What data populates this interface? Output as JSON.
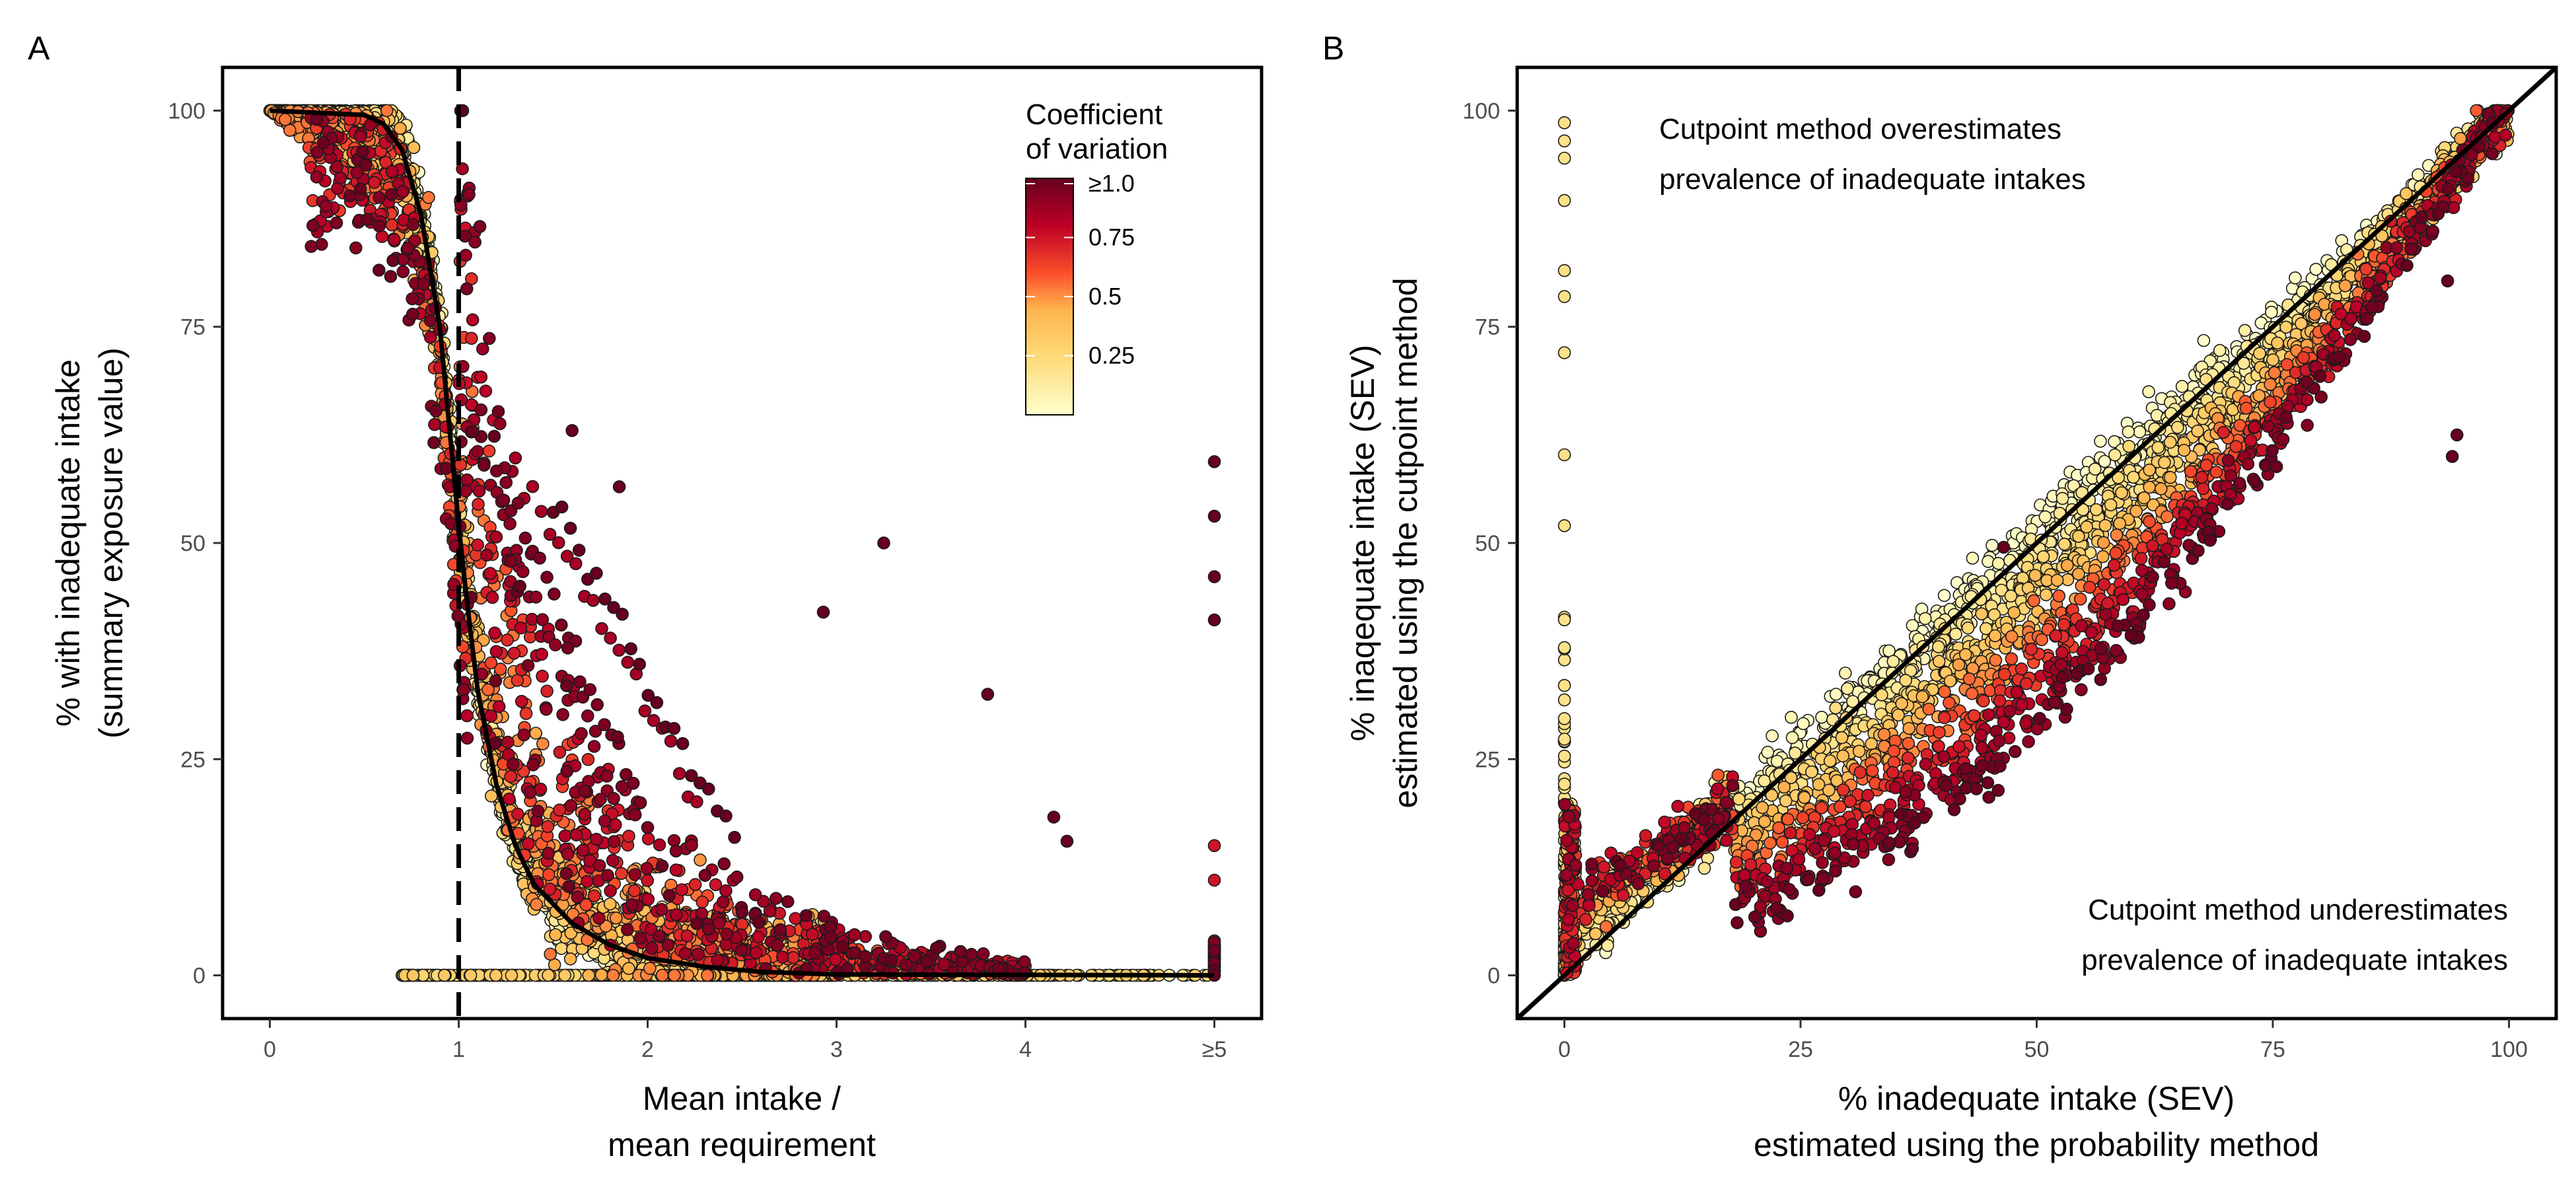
{
  "panels": {
    "a_label": "A",
    "b_label": "B"
  },
  "colors": {
    "cv_low": "#ffffcc",
    "cv_mid_low": "#feb24c",
    "cv_mid": "#fc4e2a",
    "cv_high": "#bd0026",
    "cv_max": "#67001f",
    "curve": "#000000"
  },
  "chart_data": [
    {
      "type": "scatter",
      "panel": "A",
      "title": "",
      "xlabel_line1": "Mean intake /",
      "xlabel_line2": "mean requirement",
      "ylabel_line1": "% with inadequate intake",
      "ylabel_line2": "(summary exposure value)",
      "xlim": [
        -0.25,
        5.25
      ],
      "ylim": [
        -5,
        105
      ],
      "x_ticks": [
        0,
        1,
        2,
        3,
        4,
        5
      ],
      "x_tick_labels": [
        "0",
        "1",
        "2",
        "3",
        "4",
        "≥5"
      ],
      "y_ticks": [
        0,
        25,
        50,
        75,
        100
      ],
      "y_tick_labels": [
        "0",
        "25",
        "50",
        "75",
        "100"
      ],
      "reference_line_x": 1,
      "reference_line_style": "dashed",
      "color_variable": "Coefficient of variation",
      "legend": {
        "title_line1": "Coefficient",
        "title_line2": "of variation",
        "position": "top-right",
        "ticks": [
          0.25,
          0.5,
          0.75,
          1.0
        ],
        "tick_labels": [
          "0.25",
          "0.5",
          "0.75",
          "≥1.0"
        ]
      },
      "fitted_curve": {
        "description": "black sigmoid curve",
        "points": [
          [
            0,
            100
          ],
          [
            0.5,
            99.5
          ],
          [
            0.6,
            98.5
          ],
          [
            0.7,
            95.5
          ],
          [
            0.8,
            88
          ],
          [
            0.9,
            75
          ],
          [
            1.0,
            52
          ],
          [
            1.05,
            42
          ],
          [
            1.1,
            33
          ],
          [
            1.2,
            22
          ],
          [
            1.3,
            15
          ],
          [
            1.4,
            10.5
          ],
          [
            1.6,
            6
          ],
          [
            1.8,
            3.5
          ],
          [
            2.0,
            2
          ],
          [
            2.3,
            1
          ],
          [
            2.6,
            0.4
          ],
          [
            3.0,
            0.1
          ],
          [
            5.0,
            0
          ]
        ]
      },
      "highlighted_points": [
        {
          "x": 3.25,
          "y": 50,
          "cv": 1.0
        },
        {
          "x": 2.93,
          "y": 42,
          "cv": 1.0
        },
        {
          "x": 3.8,
          "y": 32.5,
          "cv": 1.0
        },
        {
          "x": 4.15,
          "y": 18.3,
          "cv": 1.0
        },
        {
          "x": 4.22,
          "y": 15.5,
          "cv": 1.0
        },
        {
          "x": 5.0,
          "y": 59.4,
          "cv": 1.0
        },
        {
          "x": 5.0,
          "y": 53.1,
          "cv": 1.0
        },
        {
          "x": 5.0,
          "y": 46.1,
          "cv": 1.0
        },
        {
          "x": 5.0,
          "y": 41.1,
          "cv": 1.0
        },
        {
          "x": 5.0,
          "y": 15,
          "cv": 0.75
        },
        {
          "x": 5.0,
          "y": 11,
          "cv": 0.75
        },
        {
          "x": 1.6,
          "y": 63,
          "cv": 1.0
        },
        {
          "x": 1.85,
          "y": 56.5,
          "cv": 1.0
        }
      ],
      "point_series": [
        {
          "description": "main band near curve",
          "cv_range": [
            0,
            0.5
          ],
          "x_range": [
            0,
            3
          ],
          "follows": "curve"
        },
        {
          "description": "upper spread, high CV",
          "cv_range": [
            0.5,
            1.0
          ],
          "x_range": [
            1,
            4
          ],
          "y_range": [
            0,
            60
          ]
        },
        {
          "description": "zero line",
          "cv_range": [
            0,
            0.3
          ],
          "x_range": [
            0.7,
            5
          ],
          "y": 0
        }
      ]
    },
    {
      "type": "scatter",
      "panel": "B",
      "title": "",
      "xlabel_line1": "% inadequate intake (SEV)",
      "xlabel_line2": "estimated using the probability method",
      "ylabel_line1": "% inaqequate intake (SEV)",
      "ylabel_line2": "estimated using the cutpoint method",
      "xlim": [
        -5,
        105
      ],
      "ylim": [
        -5,
        105
      ],
      "x_ticks": [
        0,
        25,
        50,
        75,
        100
      ],
      "x_tick_labels": [
        "0",
        "25",
        "50",
        "75",
        "100"
      ],
      "y_ticks": [
        0,
        25,
        50,
        75,
        100
      ],
      "y_tick_labels": [
        "0",
        "25",
        "50",
        "75",
        "100"
      ],
      "identity_line": true,
      "annotations": {
        "top_line1": "Cutpoint method overestimates",
        "top_line2": "prevalence of inadequate intakes",
        "bottom_line1": "Cutpoint method underestimates",
        "bottom_line2": "prevalence of inadequate intakes"
      },
      "highlighted_points": [
        {
          "x": 0,
          "y": 98.6,
          "cv": 0.2
        },
        {
          "x": 0,
          "y": 96.5,
          "cv": 0.2
        },
        {
          "x": 0,
          "y": 94.5,
          "cv": 0.2
        },
        {
          "x": 0,
          "y": 89.6,
          "cv": 0.2
        },
        {
          "x": 0,
          "y": 81.5,
          "cv": 0.2
        },
        {
          "x": 0,
          "y": 78.5,
          "cv": 0.2
        },
        {
          "x": 0,
          "y": 72,
          "cv": 0.2
        },
        {
          "x": 0,
          "y": 60.2,
          "cv": 0.2
        },
        {
          "x": 0,
          "y": 52,
          "cv": 0.2
        },
        {
          "x": 93.5,
          "y": 80.3,
          "cv": 1.0
        },
        {
          "x": 94.5,
          "y": 62.5,
          "cv": 1.0
        },
        {
          "x": 94,
          "y": 60,
          "cv": 1.0
        },
        {
          "x": 46.5,
          "y": 49.5,
          "cv": 1.0
        }
      ]
    }
  ]
}
